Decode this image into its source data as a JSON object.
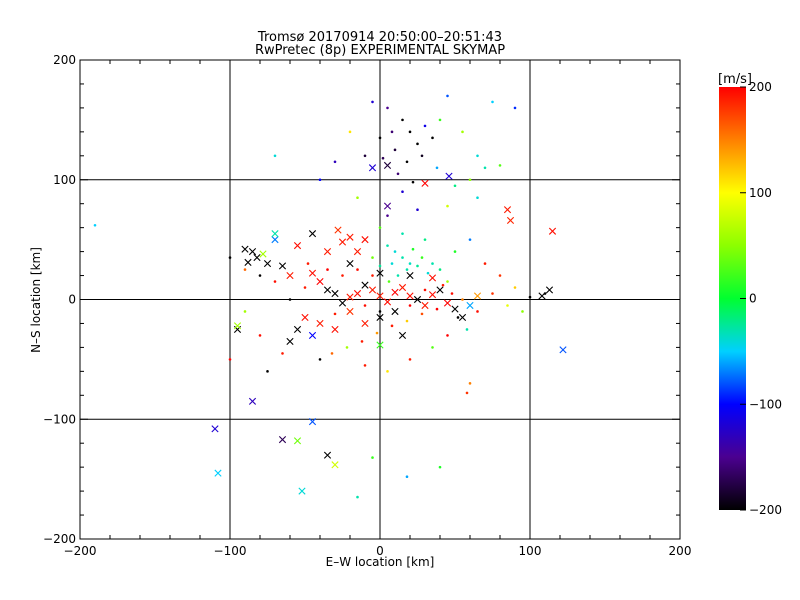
{
  "chart_data": {
    "type": "scatter",
    "title": "Tromsø 20170914 20:50:00–20:51:43",
    "subtitle": "RwPretec (8p) EXPERIMENTAL SKYMAP",
    "xlabel": "E–W location [km]",
    "ylabel": "N–S location [km]",
    "xlim": [
      -200,
      200
    ],
    "ylim": [
      -200,
      200
    ],
    "xticks": [
      "−200",
      "−100",
      "0",
      "100",
      "200"
    ],
    "yticks": [
      "−200",
      "−100",
      "0",
      "100",
      "200"
    ],
    "grid": true,
    "colorbar": {
      "label": "[m/s]",
      "range": [
        -200,
        200
      ],
      "ticks": [
        "200",
        "100",
        "0",
        "−100",
        "−200"
      ]
    },
    "series": [
      {
        "marker": "x",
        "points": [
          {
            "x": -110,
            "y": -108,
            "v": -120
          },
          {
            "x": -108,
            "y": -145,
            "v": -50
          },
          {
            "x": -85,
            "y": -85,
            "v": -130
          },
          {
            "x": -65,
            "y": -117,
            "v": -170
          },
          {
            "x": -55,
            "y": -118,
            "v": 40
          },
          {
            "x": -52,
            "y": -160,
            "v": -40
          },
          {
            "x": -35,
            "y": -130,
            "v": -200
          },
          {
            "x": -30,
            "y": -138,
            "v": 80
          },
          {
            "x": -45,
            "y": -102,
            "v": -80
          },
          {
            "x": 122,
            "y": -42,
            "v": -80
          },
          {
            "x": 115,
            "y": 57,
            "v": 195
          },
          {
            "x": 85,
            "y": 75,
            "v": 190
          },
          {
            "x": 87,
            "y": 66,
            "v": 185
          },
          {
            "x": 113,
            "y": 8,
            "v": -200
          },
          {
            "x": 108,
            "y": 3,
            "v": -200
          },
          {
            "x": 5,
            "y": 112,
            "v": -180
          },
          {
            "x": 5,
            "y": 78,
            "v": -150
          },
          {
            "x": -5,
            "y": 110,
            "v": -120
          },
          {
            "x": 30,
            "y": 97,
            "v": 200
          },
          {
            "x": 46,
            "y": 103,
            "v": -120
          },
          {
            "x": -55,
            "y": 45,
            "v": 195
          },
          {
            "x": -25,
            "y": 48,
            "v": 190
          },
          {
            "x": -85,
            "y": 40,
            "v": -200
          },
          {
            "x": -82,
            "y": 35,
            "v": -200
          },
          {
            "x": -90,
            "y": 42,
            "v": -200
          },
          {
            "x": -75,
            "y": 30,
            "v": -200
          },
          {
            "x": -88,
            "y": 31,
            "v": -200
          },
          {
            "x": -78,
            "y": 38,
            "v": 60
          },
          {
            "x": -70,
            "y": 50,
            "v": -70
          },
          {
            "x": -65,
            "y": 28,
            "v": -200
          },
          {
            "x": -60,
            "y": 20,
            "v": 190
          },
          {
            "x": -45,
            "y": 22,
            "v": 195
          },
          {
            "x": -40,
            "y": 15,
            "v": 200
          },
          {
            "x": -35,
            "y": 8,
            "v": -200
          },
          {
            "x": -30,
            "y": 5,
            "v": -200
          },
          {
            "x": -25,
            "y": -3,
            "v": -200
          },
          {
            "x": -20,
            "y": 2,
            "v": 190
          },
          {
            "x": -15,
            "y": 5,
            "v": 195
          },
          {
            "x": -10,
            "y": 12,
            "v": -200
          },
          {
            "x": -5,
            "y": 8,
            "v": 190
          },
          {
            "x": 0,
            "y": 3,
            "v": 190
          },
          {
            "x": 5,
            "y": -2,
            "v": 195
          },
          {
            "x": 10,
            "y": 6,
            "v": 200
          },
          {
            "x": 15,
            "y": 10,
            "v": 190
          },
          {
            "x": 20,
            "y": 3,
            "v": 195
          },
          {
            "x": 25,
            "y": 0,
            "v": -200
          },
          {
            "x": 30,
            "y": -5,
            "v": 190
          },
          {
            "x": 35,
            "y": 4,
            "v": 195
          },
          {
            "x": 40,
            "y": 8,
            "v": -200
          },
          {
            "x": 45,
            "y": -3,
            "v": 200
          },
          {
            "x": 50,
            "y": -8,
            "v": -200
          },
          {
            "x": 55,
            "y": -15,
            "v": -200
          },
          {
            "x": 60,
            "y": -5,
            "v": -60
          },
          {
            "x": 65,
            "y": 3,
            "v": 140
          },
          {
            "x": -50,
            "y": -15,
            "v": 195
          },
          {
            "x": -55,
            "y": -25,
            "v": -200
          },
          {
            "x": -60,
            "y": -35,
            "v": -200
          },
          {
            "x": -45,
            "y": -30,
            "v": -100
          },
          {
            "x": -40,
            "y": -20,
            "v": 190
          },
          {
            "x": -30,
            "y": -25,
            "v": 195
          },
          {
            "x": -20,
            "y": -10,
            "v": 180
          },
          {
            "x": -10,
            "y": -20,
            "v": 190
          },
          {
            "x": 0,
            "y": -15,
            "v": -200
          },
          {
            "x": 10,
            "y": -10,
            "v": -200
          },
          {
            "x": -95,
            "y": -25,
            "v": -200
          },
          {
            "x": -95,
            "y": -22,
            "v": 60
          },
          {
            "x": 0,
            "y": -38,
            "v": 20
          },
          {
            "x": 15,
            "y": -30,
            "v": -200
          },
          {
            "x": -20,
            "y": 30,
            "v": -200
          },
          {
            "x": -15,
            "y": 40,
            "v": 190
          },
          {
            "x": -10,
            "y": 50,
            "v": 195
          },
          {
            "x": -20,
            "y": 52,
            "v": 190
          },
          {
            "x": -28,
            "y": 58,
            "v": 180
          },
          {
            "x": -45,
            "y": 55,
            "v": -200
          },
          {
            "x": -70,
            "y": 55,
            "v": -30
          },
          {
            "x": -35,
            "y": 40,
            "v": 190
          },
          {
            "x": 0,
            "y": 22,
            "v": -200
          },
          {
            "x": 20,
            "y": 20,
            "v": -200
          },
          {
            "x": 35,
            "y": 18,
            "v": 195
          }
        ]
      },
      {
        "marker": "dot",
        "points": [
          {
            "x": -5,
            "y": 165,
            "v": -120
          },
          {
            "x": 5,
            "y": 160,
            "v": -150
          },
          {
            "x": 15,
            "y": 150,
            "v": -200
          },
          {
            "x": 20,
            "y": 140,
            "v": -200
          },
          {
            "x": 25,
            "y": 130,
            "v": -200
          },
          {
            "x": 10,
            "y": 125,
            "v": -180
          },
          {
            "x": 0,
            "y": 135,
            "v": -200
          },
          {
            "x": 18,
            "y": 115,
            "v": -200
          },
          {
            "x": 12,
            "y": 105,
            "v": -160
          },
          {
            "x": 28,
            "y": 120,
            "v": -190
          },
          {
            "x": 35,
            "y": 135,
            "v": -200
          },
          {
            "x": 8,
            "y": 140,
            "v": -160
          },
          {
            "x": 2,
            "y": 118,
            "v": -170
          },
          {
            "x": 22,
            "y": 98,
            "v": -200
          },
          {
            "x": 15,
            "y": 90,
            "v": -120
          },
          {
            "x": 40,
            "y": 150,
            "v": 20
          },
          {
            "x": 55,
            "y": 140,
            "v": 60
          },
          {
            "x": 65,
            "y": 120,
            "v": -40
          },
          {
            "x": 70,
            "y": 110,
            "v": -30
          },
          {
            "x": 80,
            "y": 112,
            "v": 30
          },
          {
            "x": 90,
            "y": 160,
            "v": -90
          },
          {
            "x": 75,
            "y": 165,
            "v": -50
          },
          {
            "x": 45,
            "y": 170,
            "v": -80
          },
          {
            "x": 60,
            "y": 100,
            "v": 50
          },
          {
            "x": 50,
            "y": 95,
            "v": -20
          },
          {
            "x": 38,
            "y": 110,
            "v": -60
          },
          {
            "x": 30,
            "y": 145,
            "v": -110
          },
          {
            "x": -10,
            "y": 120,
            "v": -180
          },
          {
            "x": -20,
            "y": 140,
            "v": 110
          },
          {
            "x": -30,
            "y": 115,
            "v": -130
          },
          {
            "x": -40,
            "y": 100,
            "v": -100
          },
          {
            "x": -70,
            "y": 120,
            "v": -40
          },
          {
            "x": -190,
            "y": 62,
            "v": -50
          },
          {
            "x": -15,
            "y": 85,
            "v": 60
          },
          {
            "x": 5,
            "y": 70,
            "v": -150
          },
          {
            "x": 25,
            "y": 75,
            "v": -120
          },
          {
            "x": 45,
            "y": 78,
            "v": 80
          },
          {
            "x": 65,
            "y": 85,
            "v": -40
          },
          {
            "x": 0,
            "y": 60,
            "v": 30
          },
          {
            "x": 15,
            "y": 55,
            "v": -30
          },
          {
            "x": 30,
            "y": 50,
            "v": -20
          },
          {
            "x": 5,
            "y": 45,
            "v": -30
          },
          {
            "x": 10,
            "y": 40,
            "v": -40
          },
          {
            "x": 15,
            "y": 35,
            "v": -30
          },
          {
            "x": 20,
            "y": 30,
            "v": -35
          },
          {
            "x": 25,
            "y": 28,
            "v": -25
          },
          {
            "x": 8,
            "y": 30,
            "v": -40
          },
          {
            "x": 18,
            "y": 25,
            "v": -30
          },
          {
            "x": 28,
            "y": 35,
            "v": 20
          },
          {
            "x": 35,
            "y": 30,
            "v": -30
          },
          {
            "x": 40,
            "y": 25,
            "v": -20
          },
          {
            "x": 12,
            "y": 20,
            "v": -30
          },
          {
            "x": 0,
            "y": 28,
            "v": -25
          },
          {
            "x": -5,
            "y": 35,
            "v": 40
          },
          {
            "x": 22,
            "y": 42,
            "v": 10
          },
          {
            "x": 32,
            "y": 22,
            "v": -40
          },
          {
            "x": 6,
            "y": 15,
            "v": 30
          },
          {
            "x": 45,
            "y": 15,
            "v": 60
          },
          {
            "x": 50,
            "y": 40,
            "v": 10
          },
          {
            "x": 60,
            "y": 50,
            "v": -70
          },
          {
            "x": 70,
            "y": 30,
            "v": 190
          },
          {
            "x": 80,
            "y": 20,
            "v": 180
          },
          {
            "x": 90,
            "y": 10,
            "v": 120
          },
          {
            "x": 95,
            "y": -10,
            "v": 50
          },
          {
            "x": 85,
            "y": -5,
            "v": 90
          },
          {
            "x": 75,
            "y": 5,
            "v": 180
          },
          {
            "x": 65,
            "y": -10,
            "v": 195
          },
          {
            "x": 55,
            "y": 0,
            "v": 150
          },
          {
            "x": 48,
            "y": 5,
            "v": 195
          },
          {
            "x": 38,
            "y": -8,
            "v": 200
          },
          {
            "x": 28,
            "y": -12,
            "v": 170
          },
          {
            "x": 18,
            "y": -18,
            "v": 120
          },
          {
            "x": 8,
            "y": -22,
            "v": 190
          },
          {
            "x": -2,
            "y": -28,
            "v": 140
          },
          {
            "x": -12,
            "y": -35,
            "v": 190
          },
          {
            "x": -22,
            "y": -40,
            "v": 60
          },
          {
            "x": -32,
            "y": -45,
            "v": 160
          },
          {
            "x": -40,
            "y": -50,
            "v": -200
          },
          {
            "x": -10,
            "y": -55,
            "v": 190
          },
          {
            "x": 5,
            "y": -60,
            "v": 110
          },
          {
            "x": 20,
            "y": -50,
            "v": 190
          },
          {
            "x": 35,
            "y": -40,
            "v": 30
          },
          {
            "x": 45,
            "y": -30,
            "v": 200
          },
          {
            "x": 58,
            "y": -25,
            "v": -30
          },
          {
            "x": 60,
            "y": -70,
            "v": 150
          },
          {
            "x": 58,
            "y": -78,
            "v": 180
          },
          {
            "x": -65,
            "y": -45,
            "v": 190
          },
          {
            "x": -80,
            "y": -30,
            "v": 195
          },
          {
            "x": -90,
            "y": -10,
            "v": 60
          },
          {
            "x": -100,
            "y": -50,
            "v": 200
          },
          {
            "x": -75,
            "y": -60,
            "v": -200
          },
          {
            "x": -50,
            "y": 10,
            "v": 190
          },
          {
            "x": -60,
            "y": 0,
            "v": -200
          },
          {
            "x": -70,
            "y": 15,
            "v": 195
          },
          {
            "x": -80,
            "y": 20,
            "v": -200
          },
          {
            "x": -90,
            "y": 25,
            "v": 160
          },
          {
            "x": -100,
            "y": 35,
            "v": -200
          },
          {
            "x": -15,
            "y": 25,
            "v": 195
          },
          {
            "x": -25,
            "y": 20,
            "v": 190
          },
          {
            "x": -35,
            "y": 25,
            "v": 200
          },
          {
            "x": -5,
            "y": 20,
            "v": 190
          },
          {
            "x": 30,
            "y": 8,
            "v": 195
          },
          {
            "x": 42,
            "y": 12,
            "v": 190
          },
          {
            "x": 20,
            "y": -5,
            "v": 200
          },
          {
            "x": -48,
            "y": 30,
            "v": 190
          },
          {
            "x": -10,
            "y": -5,
            "v": 195
          },
          {
            "x": -30,
            "y": -12,
            "v": 190
          },
          {
            "x": 0,
            "y": -10,
            "v": -200
          },
          {
            "x": 40,
            "y": -140,
            "v": 10
          },
          {
            "x": 18,
            "y": -148,
            "v": -60
          },
          {
            "x": -15,
            "y": -165,
            "v": -30
          },
          {
            "x": -5,
            "y": -132,
            "v": 20
          },
          {
            "x": 52,
            "y": -15,
            "v": -200
          },
          {
            "x": 110,
            "y": 5,
            "v": -200
          },
          {
            "x": 100,
            "y": 2,
            "v": -200
          }
        ]
      }
    ]
  }
}
